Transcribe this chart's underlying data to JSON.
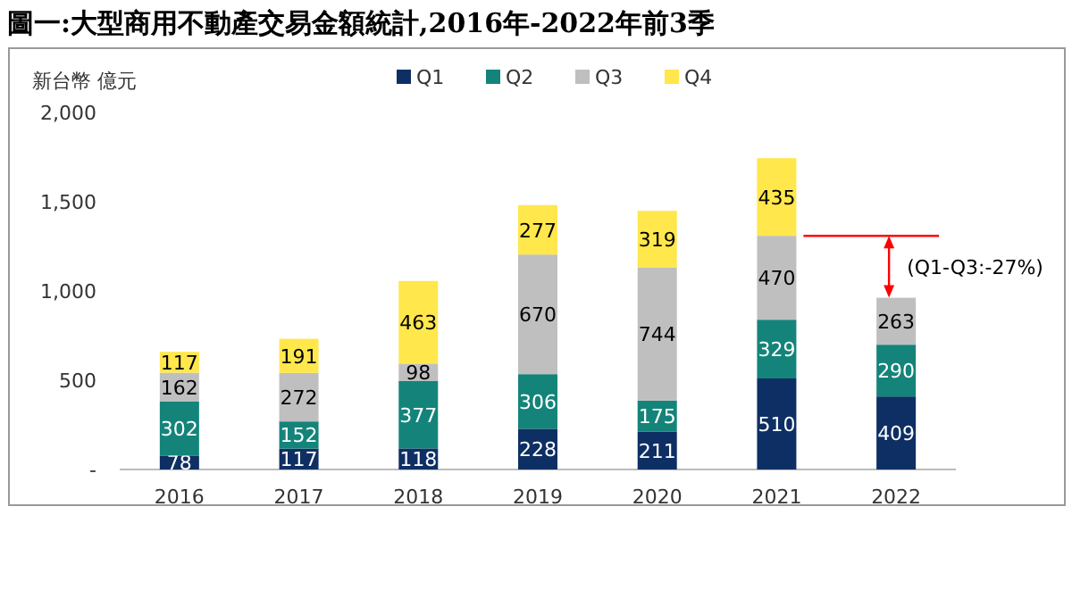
{
  "chart_data": {
    "type": "bar",
    "title": "圖一:大型商用不動產交易金額統計,2016年-2022年前3季",
    "ylabel": "新台幣 億元",
    "stacked": true,
    "data_labels": true,
    "legend": "top",
    "grid": false,
    "categories": [
      "2016",
      "2017",
      "2018",
      "2019",
      "2020",
      "2021",
      "2022"
    ],
    "series": [
      {
        "name": "Q1",
        "color": "#0e2f63",
        "values": [
          78,
          117,
          118,
          228,
          211,
          510,
          409
        ]
      },
      {
        "name": "Q2",
        "color": "#14847a",
        "values": [
          302,
          152,
          377,
          306,
          175,
          329,
          290
        ]
      },
      {
        "name": "Q3",
        "color": "#bfbfbf",
        "values": [
          162,
          272,
          98,
          670,
          744,
          470,
          263
        ]
      },
      {
        "name": "Q4",
        "color": "#ffe74c",
        "values": [
          117,
          191,
          463,
          277,
          319,
          435,
          null
        ]
      }
    ],
    "ylim": [
      0,
      2000
    ],
    "yticks": [
      {
        "value": 0,
        "label": "-"
      },
      {
        "value": 500,
        "label": "500"
      },
      {
        "value": 1000,
        "label": "1,000"
      },
      {
        "value": 1500,
        "label": "1,500"
      },
      {
        "value": 2000,
        "label": "2,000"
      }
    ],
    "annotations": [
      {
        "text": "(Q1-Q3:-27%)",
        "x": "2022",
        "y": 962
      }
    ]
  }
}
